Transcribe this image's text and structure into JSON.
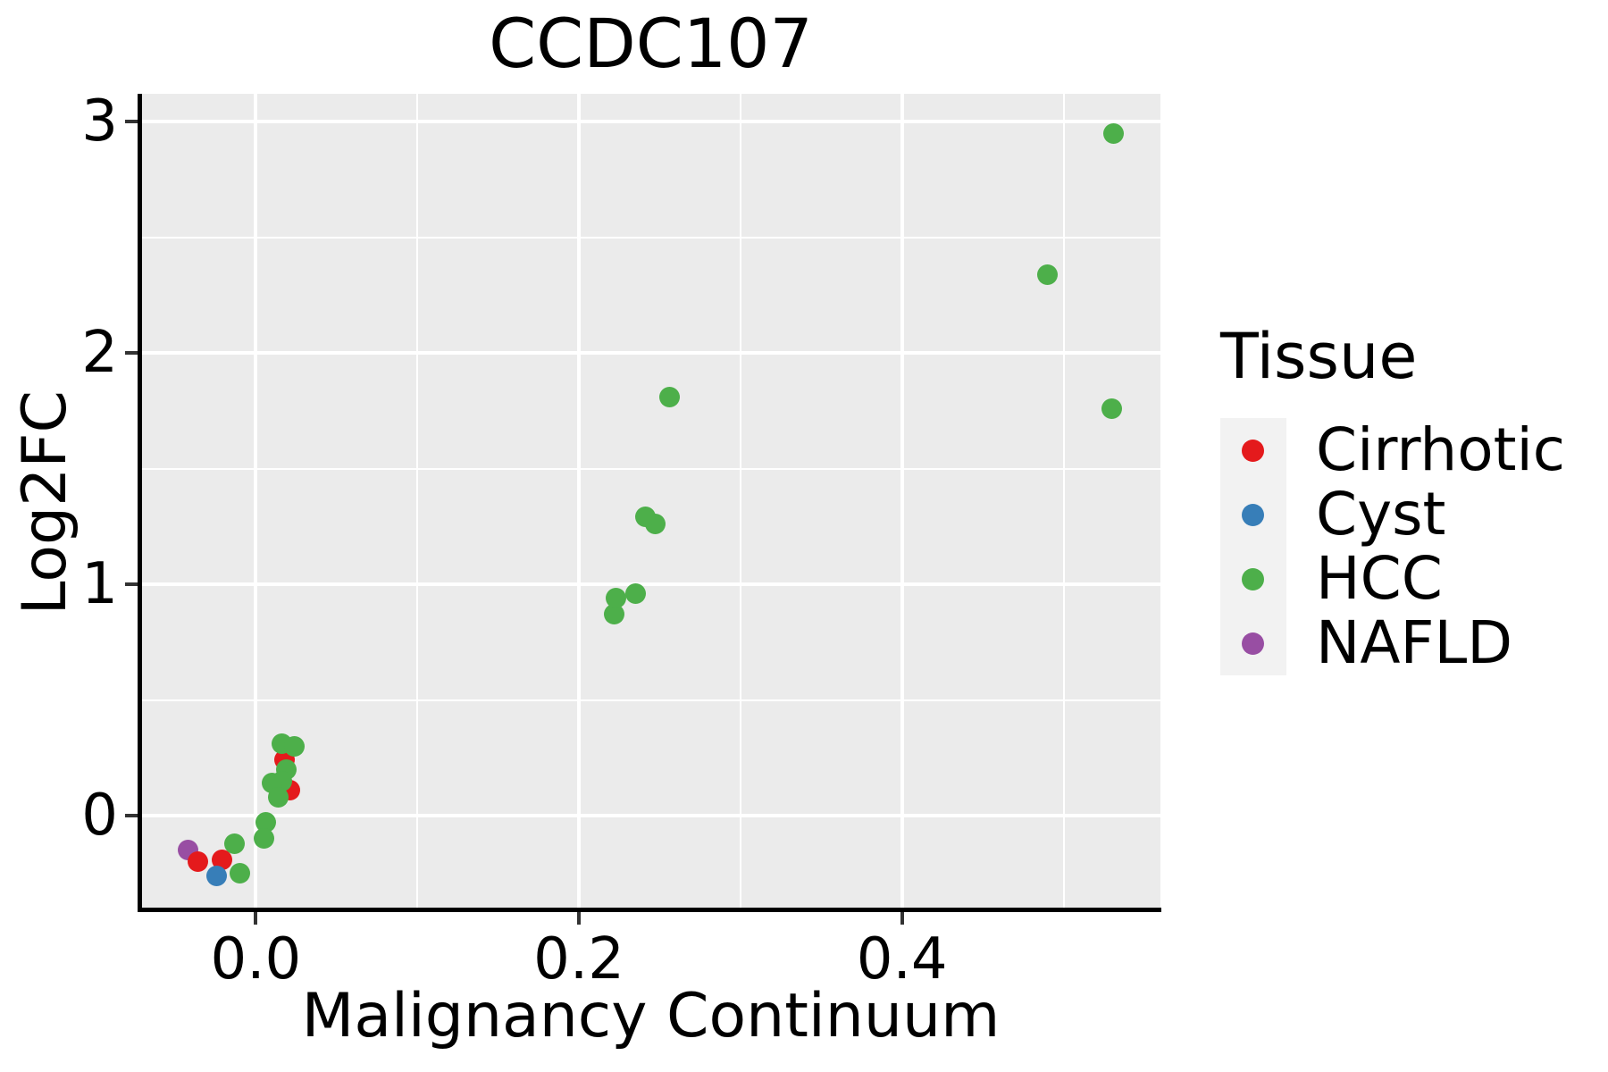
{
  "title": "CCDC107",
  "axes": {
    "x": {
      "label": "Malignancy Continuum",
      "ticks": [
        0.0,
        0.2,
        0.4
      ],
      "tick_labels": [
        "0.0",
        "0.2",
        "0.4"
      ],
      "minor_ticks": [
        0.1,
        0.3,
        0.5
      ]
    },
    "y": {
      "label": "Log2FC",
      "ticks": [
        0,
        1,
        2,
        3
      ],
      "tick_labels": [
        "0",
        "1",
        "2",
        "3"
      ],
      "minor_ticks": [
        0.5,
        1.5,
        2.5
      ]
    }
  },
  "legend": {
    "title": "Tissue",
    "items": [
      {
        "label": "Cirrhotic",
        "color": "#E41A1C"
      },
      {
        "label": "Cyst",
        "color": "#377EB8"
      },
      {
        "label": "HCC",
        "color": "#4DAF4A"
      },
      {
        "label": "NAFLD",
        "color": "#984EA3"
      }
    ]
  },
  "chart_data": {
    "type": "scatter",
    "title": "CCDC107",
    "xlabel": "Malignancy Continuum",
    "ylabel": "Log2FC",
    "xlim": [
      -0.071,
      0.56
    ],
    "ylim": [
      -0.413,
      3.12
    ],
    "grid": true,
    "legend_position": "right",
    "panel_background": "#EBEBEB",
    "gridline_color": "#ffffff",
    "series": [
      {
        "name": "NAFLD",
        "color": "#984EA3",
        "points": [
          [
            -0.042,
            -0.15
          ]
        ]
      },
      {
        "name": "Cirrhotic",
        "color": "#E41A1C",
        "points": [
          [
            0.018,
            0.24
          ],
          [
            0.021,
            0.11
          ],
          [
            -0.036,
            -0.2
          ],
          [
            -0.021,
            -0.19
          ]
        ]
      },
      {
        "name": "Cyst",
        "color": "#377EB8",
        "points": [
          [
            -0.024,
            -0.26
          ]
        ]
      },
      {
        "name": "HCC",
        "color": "#4DAF4A",
        "points": [
          [
            0.016,
            0.31
          ],
          [
            0.024,
            0.3
          ],
          [
            0.019,
            0.2
          ],
          [
            0.016,
            0.15
          ],
          [
            0.01,
            0.14
          ],
          [
            0.014,
            0.08
          ],
          [
            0.006,
            -0.03
          ],
          [
            0.005,
            -0.1
          ],
          [
            -0.013,
            -0.12
          ],
          [
            -0.01,
            -0.25
          ],
          [
            0.222,
            0.87
          ],
          [
            0.223,
            0.94
          ],
          [
            0.235,
            0.96
          ],
          [
            0.247,
            1.26
          ],
          [
            0.241,
            1.29
          ],
          [
            0.256,
            1.81
          ],
          [
            0.49,
            2.34
          ],
          [
            0.53,
            1.76
          ],
          [
            0.531,
            2.95
          ]
        ]
      }
    ]
  }
}
